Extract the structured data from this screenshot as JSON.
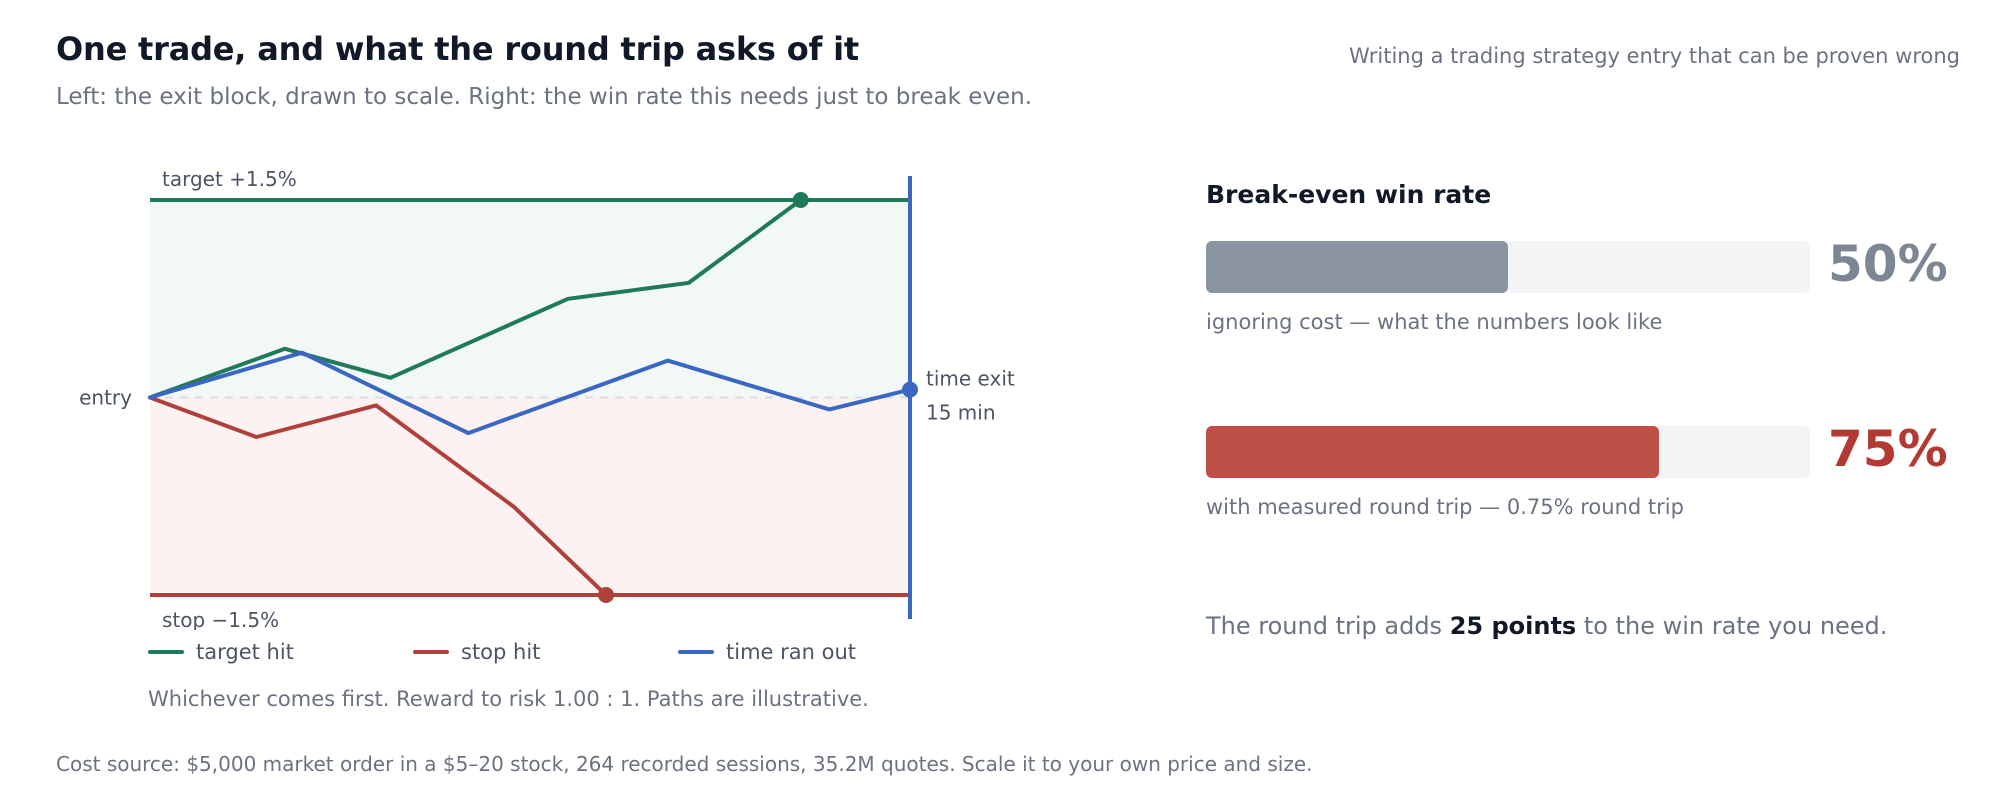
{
  "header": {
    "title": "One trade, and what the round trip asks of it",
    "subtitle": "Left: the exit block, drawn to scale. Right: the win rate this needs just to break even.",
    "context": "Writing a trading strategy entry that can be proven wrong"
  },
  "chart_data": [
    {
      "type": "line",
      "x": [
        0,
        1,
        2,
        3,
        4,
        5,
        6,
        7,
        8
      ],
      "ylim": [
        -1.5,
        1.5
      ],
      "target": {
        "label": "target +1.5%",
        "value": 1.5
      },
      "stop": {
        "label": "stop −1.5%",
        "value": -1.5
      },
      "entry": {
        "label": "entry",
        "value": 0
      },
      "time_exit": {
        "label_line1": "time exit",
        "label_line2": "15 min",
        "x": 8
      },
      "series": [
        {
          "name": "target hit",
          "color": "#1f7a57",
          "points": [
            [
              0,
              0
            ],
            [
              1.42,
              0.37
            ],
            [
              2.53,
              0.15
            ],
            [
              4.4,
              0.75
            ],
            [
              5.67,
              0.87
            ],
            [
              6.85,
              1.5
            ]
          ]
        },
        {
          "name": "stop hit",
          "color": "#b0403c",
          "points": [
            [
              0,
              0
            ],
            [
              1.12,
              -0.3
            ],
            [
              2.38,
              -0.06
            ],
            [
              3.83,
              -0.83
            ],
            [
              4.8,
              -1.5
            ]
          ]
        },
        {
          "name": "time ran out",
          "color": "#3a66c4",
          "points": [
            [
              0,
              0
            ],
            [
              1.6,
              0.34
            ],
            [
              3.35,
              -0.27
            ],
            [
              5.45,
              0.28
            ],
            [
              7.15,
              -0.09
            ],
            [
              8,
              0.06
            ]
          ]
        }
      ],
      "note": "Whichever comes first. Reward to risk 1.00 : 1. Paths are illustrative."
    },
    {
      "type": "bar",
      "title": "Break-even win rate",
      "xlim": [
        0,
        100
      ],
      "categories": [
        "ignoring cost — what the numbers look like",
        "with measured round trip — 0.75% round trip"
      ],
      "values": [
        50,
        75
      ],
      "value_labels": [
        "50%",
        "75%"
      ],
      "colors": [
        "#8b95a1",
        "#bc4f48"
      ],
      "value_colors": [
        "#7c8694",
        "#b23a33"
      ]
    }
  ],
  "summary": {
    "prefix": "The round trip adds ",
    "emphasis": "25 points",
    "suffix": " to the win rate you need."
  },
  "footer": "Cost source: $5,000 market order in a $5–20 stock, 264 recorded sessions, 35.2M quotes. Scale it to your own price and size."
}
